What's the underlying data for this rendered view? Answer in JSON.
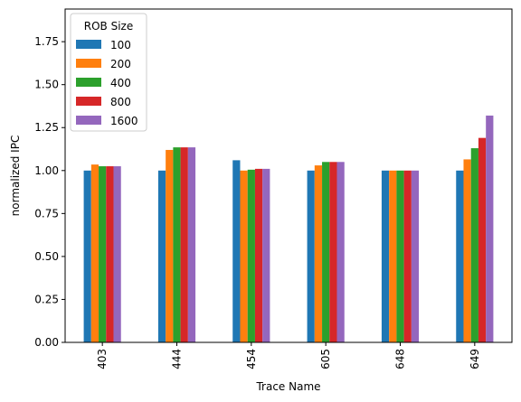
{
  "chart_data": {
    "type": "bar",
    "categories": [
      "403",
      "444",
      "454",
      "605",
      "648",
      "649"
    ],
    "series": [
      {
        "name": "100",
        "color": "#1f77b4",
        "values": [
          1.0,
          1.0,
          1.06,
          1.0,
          1.0,
          1.0
        ]
      },
      {
        "name": "200",
        "color": "#ff7f0e",
        "values": [
          1.035,
          1.12,
          1.0,
          1.03,
          1.0,
          1.065
        ]
      },
      {
        "name": "400",
        "color": "#2ca02c",
        "values": [
          1.025,
          1.135,
          1.005,
          1.05,
          1.0,
          1.13
        ]
      },
      {
        "name": "800",
        "color": "#d62728",
        "values": [
          1.025,
          1.135,
          1.01,
          1.05,
          1.0,
          1.19
        ]
      },
      {
        "name": "1600",
        "color": "#9467bd",
        "values": [
          1.025,
          1.135,
          1.01,
          1.05,
          1.0,
          1.32
        ]
      }
    ],
    "title": "",
    "xlabel": "Trace Name",
    "ylabel": "normalized IPC",
    "ylim": [
      0,
      1.94
    ],
    "yticks": [
      "0.00",
      "0.25",
      "0.50",
      "0.75",
      "1.00",
      "1.25",
      "1.50",
      "1.75"
    ],
    "legend": {
      "title": "ROB Size",
      "placement": "upper-left"
    },
    "grid": false,
    "xtick_rotation": 90
  }
}
